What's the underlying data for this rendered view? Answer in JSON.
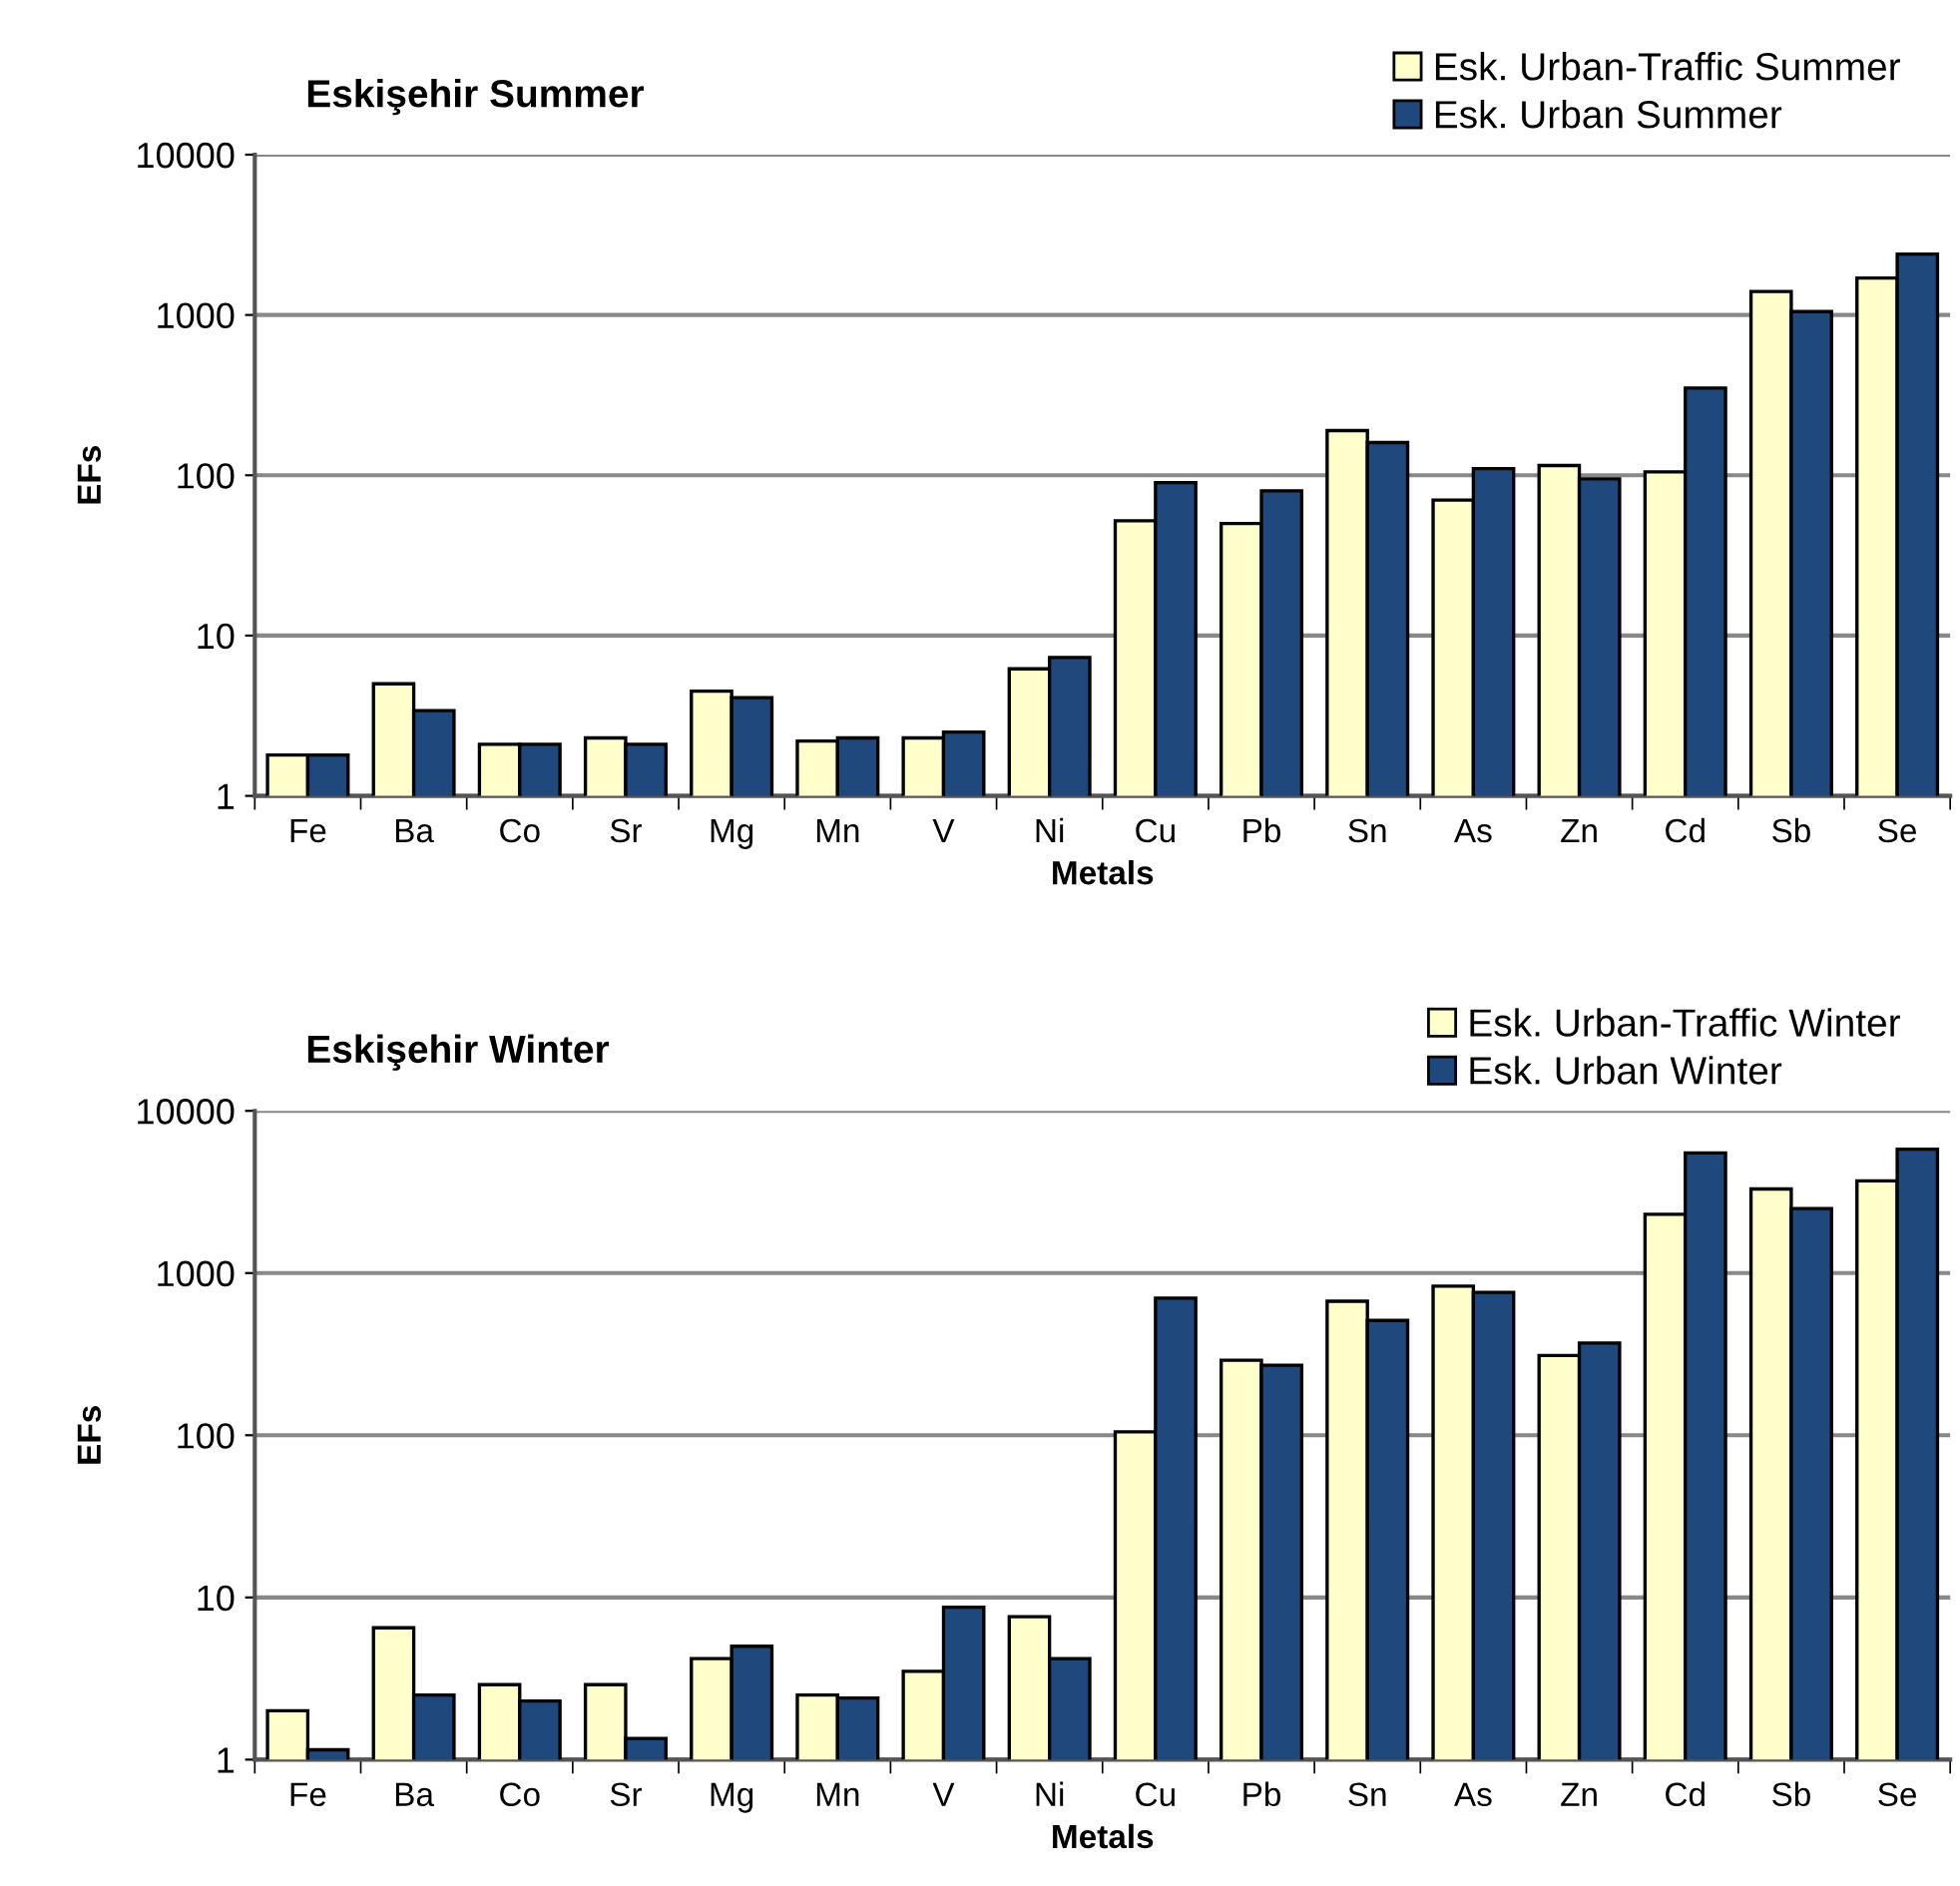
{
  "chart_data": [
    {
      "type": "bar",
      "title": "Eskişehir Summer",
      "xlabel": "Metals",
      "ylabel": "EFs",
      "log": true,
      "grid": "y",
      "legend": "top right",
      "categories": [
        "Fe",
        "Ba",
        "Co",
        "Sr",
        "Mg",
        "Mn",
        "V",
        "Ni",
        "Cu",
        "Pb",
        "Sn",
        "As",
        "Zn",
        "Cd",
        "Sb",
        "Se"
      ],
      "ylim": [
        1,
        10000
      ],
      "yticks": [
        1,
        10,
        100,
        1000,
        10000
      ],
      "series": [
        {
          "name": "Esk. Urban-Traffic Summer",
          "color": "#ffffcc",
          "values": [
            1.8,
            5,
            2.1,
            2.3,
            4.5,
            2.2,
            2.3,
            6.2,
            52,
            50,
            190,
            70,
            115,
            105,
            1400,
            1700
          ]
        },
        {
          "name": "Esk. Urban Summer",
          "color": "#1f497d",
          "values": [
            1.8,
            3.4,
            2.1,
            2.1,
            4.1,
            2.3,
            2.5,
            7.3,
            90,
            80,
            160,
            110,
            95,
            350,
            1050,
            2400
          ]
        }
      ]
    },
    {
      "type": "bar",
      "title": "Eskişehir Winter",
      "xlabel": "Metals",
      "ylabel": "EFs",
      "log": true,
      "grid": "y",
      "legend": "top right",
      "categories": [
        "Fe",
        "Ba",
        "Co",
        "Sr",
        "Mg",
        "Mn",
        "V",
        "Ni",
        "Cu",
        "Pb",
        "Sn",
        "As",
        "Zn",
        "Cd",
        "Sb",
        "Se"
      ],
      "ylim": [
        1,
        10000
      ],
      "yticks": [
        1,
        10,
        100,
        1000,
        10000
      ],
      "series": [
        {
          "name": "Esk. Urban-Traffic Winter",
          "color": "#ffffcc",
          "values": [
            2,
            6.5,
            2.9,
            2.9,
            4.2,
            2.5,
            3.5,
            7.6,
            105,
            290,
            670,
            830,
            310,
            2300,
            3300,
            3700
          ]
        },
        {
          "name": "Esk. Urban Winter",
          "color": "#1f497d",
          "values": [
            1.15,
            2.5,
            2.3,
            1.35,
            5,
            2.4,
            8.7,
            4.2,
            700,
            270,
            510,
            760,
            370,
            5500,
            2500,
            5800
          ]
        }
      ]
    }
  ]
}
